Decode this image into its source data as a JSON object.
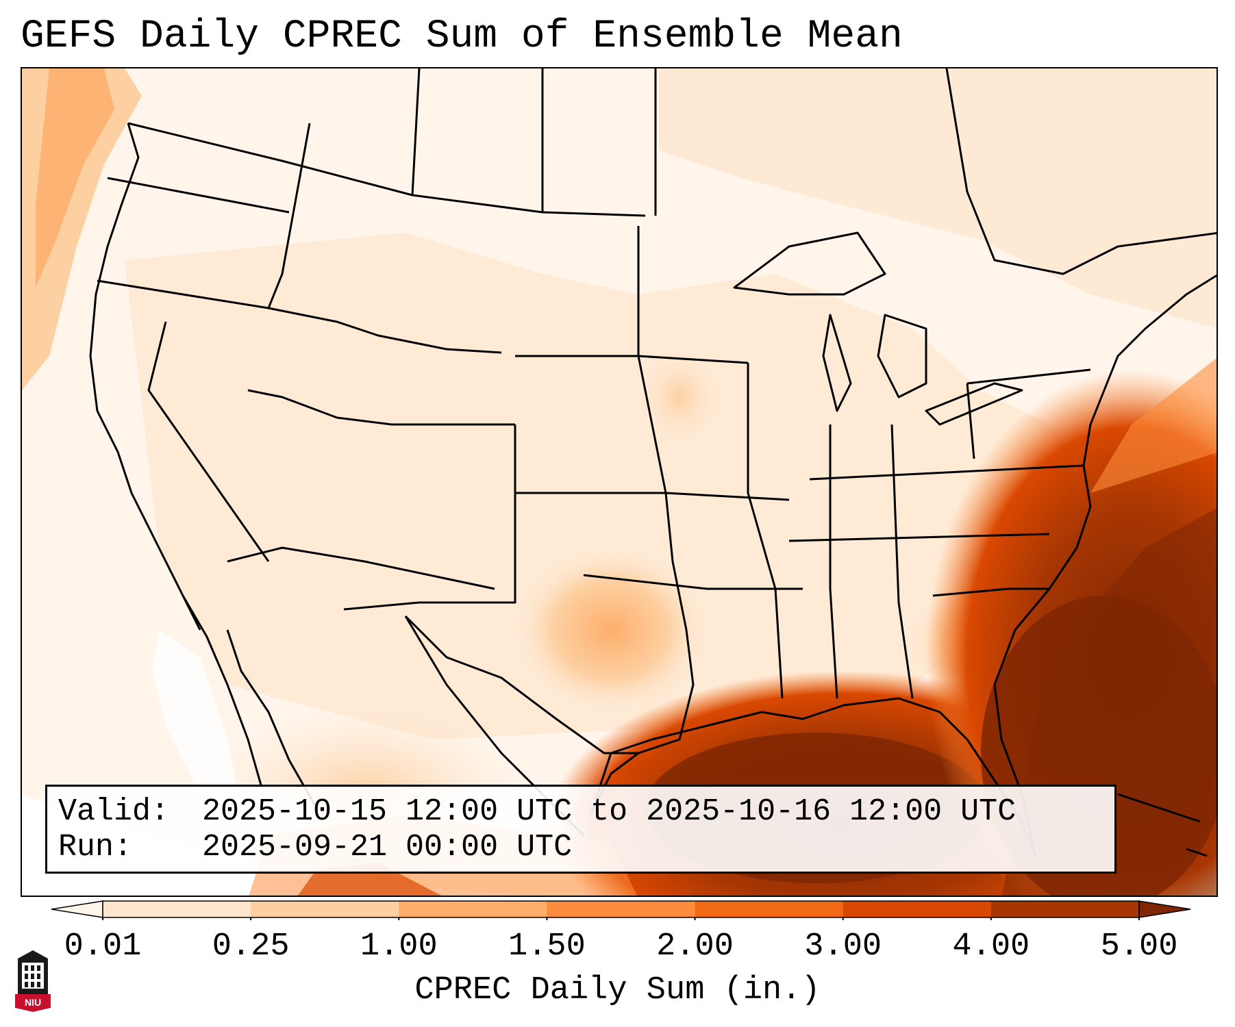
{
  "title": "GEFS Daily CPREC Sum of Ensemble Mean",
  "info": {
    "valid_label": "Valid:",
    "valid_value": "2025-10-15 12:00 UTC to 2025-10-16 12:00 UTC",
    "run_label": "Run:",
    "run_value": "2025-09-21 00:00 UTC"
  },
  "colorbar": {
    "label": "CPREC Daily Sum (in.)",
    "ticks": [
      "0.01",
      "0.25",
      "1.00",
      "1.50",
      "2.00",
      "3.00",
      "4.00",
      "5.00"
    ],
    "colors": [
      "#fff5eb",
      "#fee6ce",
      "#fdd0a2",
      "#fdae6b",
      "#fd8d3c",
      "#f16913",
      "#d94801",
      "#a63603",
      "#7f2704"
    ],
    "extend": "both"
  },
  "map": {
    "projection": "Lambert conformal",
    "region": "Contiguous United States",
    "field": "Convective precipitation daily sum",
    "boundary_color": "#000000",
    "max_region": "Gulf of Mexico / Florida / western Atlantic"
  },
  "logo": {
    "text": "NIU",
    "colors": [
      "#c8102e",
      "#000000"
    ]
  }
}
